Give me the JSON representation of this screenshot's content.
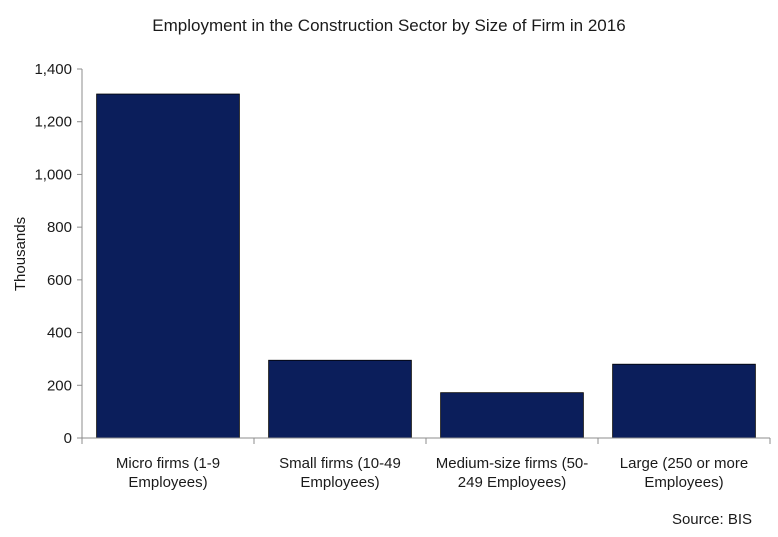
{
  "chart_data": {
    "type": "bar",
    "title": "Employment in the Construction Sector by Size of Firm in 2016",
    "ylabel": "Thousands",
    "xlabel": "",
    "categories": [
      [
        "Micro firms (1-9",
        "Employees)"
      ],
      [
        "Small firms (10-49",
        "Employees)"
      ],
      [
        "Medium-size firms (50-",
        "249 Employees)"
      ],
      [
        "Large (250 or more",
        "Employees)"
      ]
    ],
    "values": [
      1305,
      295,
      172,
      280
    ],
    "ylim": [
      0,
      1400
    ],
    "yticks": [
      0,
      200,
      400,
      600,
      800,
      1000,
      1200,
      1400
    ],
    "ytick_labels": [
      "0",
      "200",
      "400",
      "600",
      "800",
      "1,000",
      "1,200",
      "1,400"
    ],
    "bar_color": "#0b1e5b",
    "grid": false,
    "source": "Source: BIS"
  }
}
